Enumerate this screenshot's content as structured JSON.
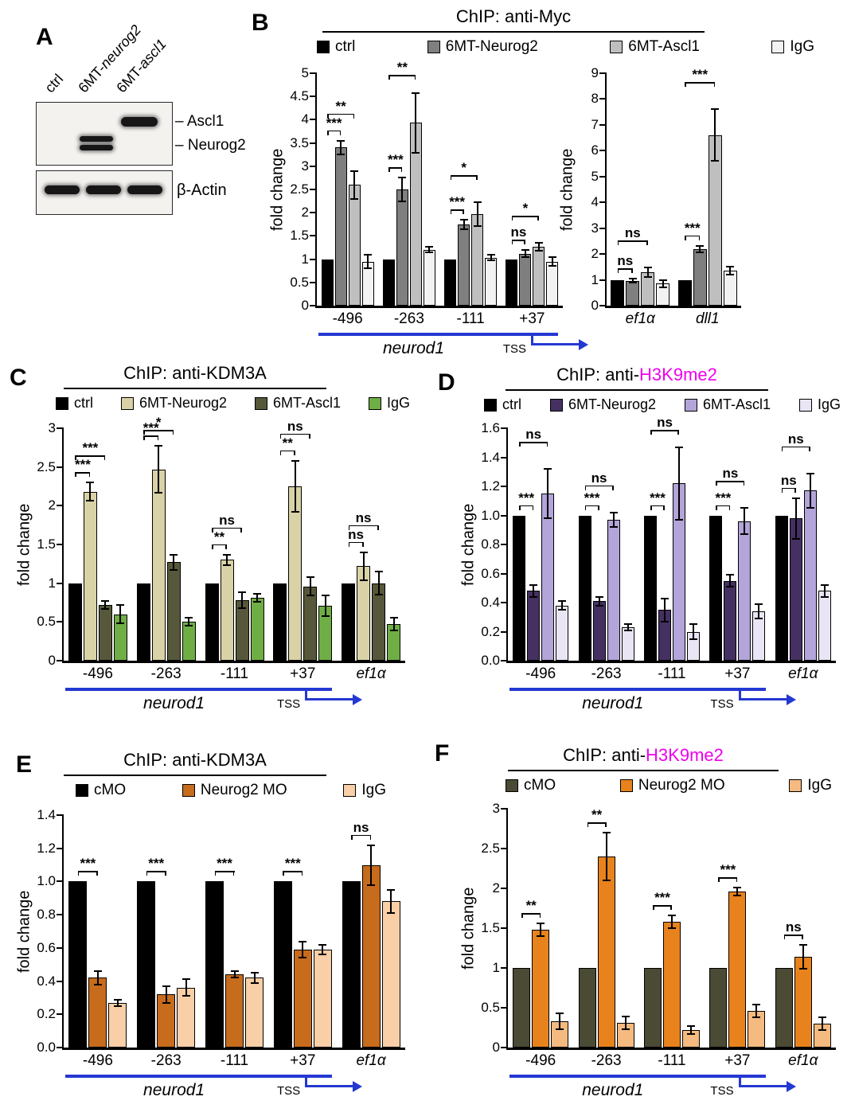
{
  "figure": {
    "accent_blue": "#2438d2",
    "magenta": "#ee00ee",
    "background": "#ffffff"
  },
  "panelA": {
    "letter": "A",
    "lane1": "ctrl",
    "lane2_prefix": "6MT-",
    "lane2_gene": "neurog2",
    "lane3_prefix": "6MT-",
    "lane3_gene": "ascl1",
    "dash": "–",
    "band1_label": "Ascl1",
    "band2_label": "Neurog2",
    "actin_label": "β-Actin"
  },
  "panelB": {
    "letter": "B",
    "title": "ChIP: anti-Myc"
  },
  "panelC": {
    "letter": "C",
    "title": "ChIP: anti-KDM3A"
  },
  "panelD": {
    "letter": "D",
    "title_prefix": "ChIP: anti-",
    "title_highlight": "H3K9me2"
  },
  "panelE": {
    "letter": "E",
    "title": "ChIP: anti-KDM3A"
  },
  "panelF": {
    "letter": "F",
    "title_prefix": "ChIP: anti-",
    "title_highlight": "H3K9me2"
  },
  "chart_data": [
    {
      "id": "panel-b-neurod1",
      "type": "bar",
      "title": "ChIP: anti-Myc",
      "ylabel": "fold change",
      "ylim": [
        0,
        5
      ],
      "ystep": 0.5,
      "categories": [
        "-496",
        "-263",
        "-111",
        "+37"
      ],
      "cat_italic": [
        false,
        false,
        false,
        false
      ],
      "series": [
        {
          "name": "ctrl",
          "color": "#000000",
          "values": [
            1,
            1,
            1,
            1
          ],
          "errors": [
            0,
            0,
            0,
            0
          ]
        },
        {
          "name": "6MT-Neurog2",
          "color": "#7f7f7f",
          "values": [
            3.4,
            2.5,
            1.75,
            1.12
          ],
          "errors": [
            0.15,
            0.25,
            0.1,
            0.08
          ]
        },
        {
          "name": "6MT-Ascl1",
          "color": "#bfbfbf",
          "values": [
            2.6,
            3.93,
            1.97,
            1.27
          ],
          "errors": [
            0.3,
            0.65,
            0.25,
            0.08
          ]
        },
        {
          "name": "IgG",
          "color": "#f2f2f2",
          "values": [
            0.95,
            1.2,
            1.03,
            0.95
          ],
          "errors": [
            0.15,
            0.06,
            0.06,
            0.1
          ]
        }
      ],
      "annotations": [
        {
          "cat": 0,
          "a": 0,
          "b": 1,
          "text": "***"
        },
        {
          "cat": 0,
          "a": 0,
          "b": 2,
          "text": "**"
        },
        {
          "cat": 1,
          "a": 0,
          "b": 1,
          "text": "***"
        },
        {
          "cat": 1,
          "a": 0,
          "b": 2,
          "text": "**"
        },
        {
          "cat": 2,
          "a": 0,
          "b": 1,
          "text": "***"
        },
        {
          "cat": 2,
          "a": 0,
          "b": 2,
          "text": "*"
        },
        {
          "cat": 3,
          "a": 0,
          "b": 1,
          "text": "ns"
        },
        {
          "cat": 3,
          "a": 0,
          "b": 2,
          "text": "*"
        }
      ],
      "gene": {
        "label": "neurod1",
        "tss": "TSS",
        "span": 4
      }
    },
    {
      "id": "panel-b-controls",
      "type": "bar",
      "title": "ChIP: anti-Myc",
      "ylabel": "fold change",
      "ylim": [
        0,
        9
      ],
      "ystep": 1,
      "categories": [
        "ef1α",
        "dll1"
      ],
      "cat_italic": [
        true,
        true
      ],
      "series": [
        {
          "name": "ctrl",
          "color": "#000000",
          "values": [
            1,
            1
          ],
          "errors": [
            0,
            0
          ]
        },
        {
          "name": "6MT-Neurog2",
          "color": "#7f7f7f",
          "values": [
            0.97,
            2.2
          ],
          "errors": [
            0.08,
            0.12
          ]
        },
        {
          "name": "6MT-Ascl1",
          "color": "#bfbfbf",
          "values": [
            1.3,
            6.6
          ],
          "errors": [
            0.18,
            1.0
          ]
        },
        {
          "name": "IgG",
          "color": "#f2f2f2",
          "values": [
            0.85,
            1.35
          ],
          "errors": [
            0.15,
            0.15
          ]
        }
      ],
      "annotations": [
        {
          "cat": 0,
          "a": 0,
          "b": 1,
          "text": "ns"
        },
        {
          "cat": 0,
          "a": 0,
          "b": 2,
          "text": "ns"
        },
        {
          "cat": 1,
          "a": 0,
          "b": 1,
          "text": "***"
        },
        {
          "cat": 1,
          "a": 0,
          "b": 2,
          "text": "***"
        }
      ]
    },
    {
      "id": "panel-c-kdm3a",
      "type": "bar",
      "title": "ChIP: anti-KDM3A",
      "ylabel": "fold change",
      "ylim": [
        0,
        3
      ],
      "ystep": 0.5,
      "categories": [
        "-496",
        "-263",
        "-111",
        "+37",
        "ef1α"
      ],
      "cat_italic": [
        false,
        false,
        false,
        false,
        true
      ],
      "series": [
        {
          "name": "ctrl",
          "color": "#000000",
          "values": [
            1,
            1,
            1,
            1,
            1
          ],
          "errors": [
            0,
            0,
            0,
            0,
            0
          ]
        },
        {
          "name": "6MT-Neurog2",
          "color": "#d9d2a6",
          "values": [
            2.18,
            2.47,
            1.3,
            2.25,
            1.22
          ],
          "errors": [
            0.12,
            0.3,
            0.07,
            0.33,
            0.18
          ]
        },
        {
          "name": "6MT-Ascl1",
          "color": "#57573b",
          "values": [
            0.72,
            1.27,
            0.78,
            0.96,
            1.0
          ],
          "errors": [
            0.05,
            0.1,
            0.1,
            0.12,
            0.15
          ]
        },
        {
          "name": "IgG",
          "color": "#6fae45",
          "values": [
            0.6,
            0.5,
            0.81,
            0.71,
            0.47
          ],
          "errors": [
            0.12,
            0.05,
            0.05,
            0.13,
            0.08
          ]
        }
      ],
      "annotations": [
        {
          "cat": 0,
          "a": 0,
          "b": 1,
          "text": "***"
        },
        {
          "cat": 0,
          "a": 0,
          "b": 2,
          "text": "***"
        },
        {
          "cat": 1,
          "a": 0,
          "b": 1,
          "text": "***"
        },
        {
          "cat": 1,
          "a": 0,
          "b": 2,
          "text": "*"
        },
        {
          "cat": 2,
          "a": 0,
          "b": 1,
          "text": "**"
        },
        {
          "cat": 2,
          "a": 0,
          "b": 2,
          "text": "ns"
        },
        {
          "cat": 3,
          "a": 0,
          "b": 1,
          "text": "**"
        },
        {
          "cat": 3,
          "a": 0,
          "b": 2,
          "text": "ns"
        },
        {
          "cat": 4,
          "a": 0,
          "b": 1,
          "text": "ns"
        },
        {
          "cat": 4,
          "a": 0,
          "b": 2,
          "text": "ns"
        }
      ],
      "gene": {
        "label": "neurod1",
        "tss": "TSS",
        "span": 4
      }
    },
    {
      "id": "panel-d-h3k9me2",
      "type": "bar",
      "title": "ChIP: anti-H3K9me2",
      "ylabel": "fold change",
      "ylim": [
        0,
        1.6
      ],
      "ystep": 0.2,
      "ydecimals": 1,
      "categories": [
        "-496",
        "-263",
        "-111",
        "+37",
        "ef1α"
      ],
      "cat_italic": [
        false,
        false,
        false,
        false,
        true
      ],
      "series": [
        {
          "name": "ctrl",
          "color": "#000000",
          "values": [
            1,
            1,
            1,
            1,
            1
          ],
          "errors": [
            0,
            0,
            0,
            0,
            0
          ]
        },
        {
          "name": "6MT-Neurog2",
          "color": "#443061",
          "values": [
            0.48,
            0.41,
            0.35,
            0.55,
            0.98
          ],
          "errors": [
            0.04,
            0.03,
            0.08,
            0.04,
            0.14
          ]
        },
        {
          "name": "6MT-Ascl1",
          "color": "#b3a4d9",
          "values": [
            1.15,
            0.97,
            1.22,
            0.96,
            1.17
          ],
          "errors": [
            0.17,
            0.05,
            0.25,
            0.09,
            0.12
          ]
        },
        {
          "name": "IgG",
          "color": "#e9e5f4",
          "values": [
            0.38,
            0.23,
            0.2,
            0.34,
            0.48
          ],
          "errors": [
            0.03,
            0.02,
            0.05,
            0.05,
            0.04
          ]
        }
      ],
      "annotations": [
        {
          "cat": 0,
          "a": 0,
          "b": 1,
          "text": "***"
        },
        {
          "cat": 0,
          "a": 0,
          "b": 2,
          "text": "ns"
        },
        {
          "cat": 1,
          "a": 0,
          "b": 1,
          "text": "***"
        },
        {
          "cat": 1,
          "a": 0,
          "b": 2,
          "text": "ns"
        },
        {
          "cat": 2,
          "a": 0,
          "b": 1,
          "text": "***"
        },
        {
          "cat": 2,
          "a": 0,
          "b": 2,
          "text": "ns"
        },
        {
          "cat": 3,
          "a": 0,
          "b": 1,
          "text": "***"
        },
        {
          "cat": 3,
          "a": 0,
          "b": 2,
          "text": "ns"
        },
        {
          "cat": 4,
          "a": 0,
          "b": 1,
          "text": "ns"
        },
        {
          "cat": 4,
          "a": 0,
          "b": 2,
          "text": "ns"
        }
      ],
      "gene": {
        "label": "neurod1",
        "tss": "TSS",
        "span": 4
      }
    },
    {
      "id": "panel-e-kdm3a-mo",
      "type": "bar",
      "title": "ChIP: anti-KDM3A",
      "ylabel": "fold change",
      "ylim": [
        0,
        1.4
      ],
      "ystep": 0.2,
      "ydecimals": 1,
      "categories": [
        "-496",
        "-263",
        "-111",
        "+37",
        "ef1α"
      ],
      "cat_italic": [
        false,
        false,
        false,
        false,
        true
      ],
      "series": [
        {
          "name": "cMO",
          "color": "#000000",
          "values": [
            1,
            1,
            1,
            1,
            1
          ],
          "errors": [
            0,
            0,
            0,
            0,
            0
          ]
        },
        {
          "name": "Neurog2 MO",
          "color": "#c76b1d",
          "values": [
            0.42,
            0.32,
            0.44,
            0.59,
            1.1
          ],
          "errors": [
            0.04,
            0.05,
            0.02,
            0.05,
            0.12
          ]
        },
        {
          "name": "IgG",
          "color": "#f8cfa6",
          "values": [
            0.27,
            0.36,
            0.42,
            0.59,
            0.88
          ],
          "errors": [
            0.02,
            0.05,
            0.03,
            0.03,
            0.07
          ]
        }
      ],
      "annotations": [
        {
          "cat": 0,
          "a": 0,
          "b": 1,
          "text": "***"
        },
        {
          "cat": 1,
          "a": 0,
          "b": 1,
          "text": "***"
        },
        {
          "cat": 2,
          "a": 0,
          "b": 1,
          "text": "***"
        },
        {
          "cat": 3,
          "a": 0,
          "b": 1,
          "text": "***"
        },
        {
          "cat": 4,
          "a": 0,
          "b": 1,
          "text": "ns"
        }
      ],
      "gene": {
        "label": "neurod1",
        "tss": "TSS",
        "span": 4
      }
    },
    {
      "id": "panel-f-h3k9me2-mo",
      "type": "bar",
      "title": "ChIP: anti-H3K9me2",
      "ylabel": "fold change",
      "ylim": [
        0,
        3
      ],
      "ystep": 0.5,
      "categories": [
        "-496",
        "-263",
        "-111",
        "+37",
        "ef1α"
      ],
      "cat_italic": [
        false,
        false,
        false,
        false,
        true
      ],
      "series": [
        {
          "name": "cMO",
          "color": "#4b4a35",
          "values": [
            1,
            1,
            1,
            1,
            1
          ],
          "errors": [
            0,
            0,
            0,
            0,
            0
          ]
        },
        {
          "name": "Neurog2 MO",
          "color": "#e8821d",
          "values": [
            1.48,
            2.4,
            1.58,
            1.96,
            1.14
          ],
          "errors": [
            0.08,
            0.3,
            0.08,
            0.05,
            0.15
          ]
        },
        {
          "name": "IgG",
          "color": "#f5ba80",
          "values": [
            0.33,
            0.31,
            0.22,
            0.46,
            0.3
          ],
          "errors": [
            0.1,
            0.08,
            0.05,
            0.08,
            0.08
          ]
        }
      ],
      "annotations": [
        {
          "cat": 0,
          "a": 0,
          "b": 1,
          "text": "**"
        },
        {
          "cat": 1,
          "a": 0,
          "b": 1,
          "text": "**"
        },
        {
          "cat": 2,
          "a": 0,
          "b": 1,
          "text": "***"
        },
        {
          "cat": 3,
          "a": 0,
          "b": 1,
          "text": "***"
        },
        {
          "cat": 4,
          "a": 0,
          "b": 1,
          "text": "ns"
        }
      ],
      "gene": {
        "label": "neurod1",
        "tss": "TSS",
        "span": 4
      }
    }
  ]
}
